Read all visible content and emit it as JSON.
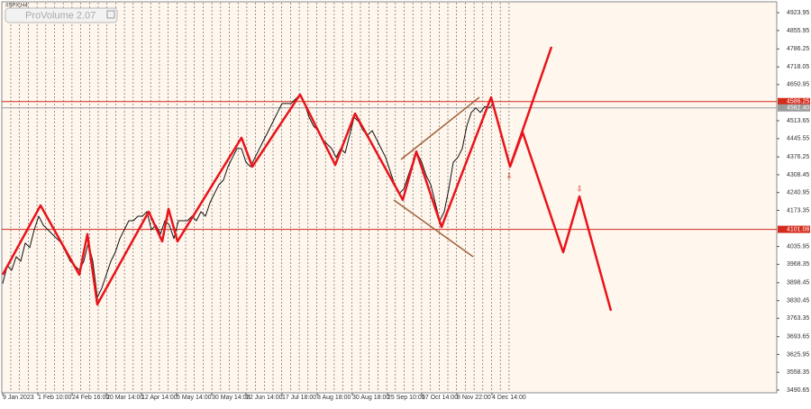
{
  "chart_data": {
    "type": "line",
    "symbol": "#SPX,H4",
    "indicator": "ProVolume 2.07",
    "xlim": [
      0,
      170
    ],
    "ylim": [
      3477,
      4972
    ],
    "xticks": [
      {
        "value": 0,
        "label": "9 Jan 2023"
      },
      {
        "value": 7.8,
        "label": "1 Feb 10:00"
      },
      {
        "value": 15.4,
        "label": "24 Feb 16:00"
      },
      {
        "value": 23,
        "label": "20 Mar 14:00"
      },
      {
        "value": 30.8,
        "label": "12 Apr 14:00"
      },
      {
        "value": 38.6,
        "label": "5 May 14:00"
      },
      {
        "value": 46.4,
        "label": "30 May 14:00"
      },
      {
        "value": 54,
        "label": "22 Jun 14:00"
      },
      {
        "value": 62,
        "label": "17 Jul 18:00"
      },
      {
        "value": 69.8,
        "label": "8 Aug 18:00"
      },
      {
        "value": 77.6,
        "label": "30 Aug 18:00"
      },
      {
        "value": 85.4,
        "label": "25 Sep 10:00"
      },
      {
        "value": 93,
        "label": "17 Oct 14:00"
      },
      {
        "value": 100.8,
        "label": "8 Nov 22:00"
      },
      {
        "value": 108.6,
        "label": "4 Dec 14:00"
      }
    ],
    "yticks": [
      4923.95,
      4855.95,
      4786.25,
      4718.05,
      4650.95,
      4513.65,
      4445.55,
      4376.25,
      4308.45,
      4240.95,
      4173.35,
      4035.95,
      3968.35,
      3898.45,
      3830.45,
      3763.35,
      3693.65,
      3625.95,
      3558.35,
      3490.65
    ],
    "levels": [
      {
        "value": 4586.25,
        "color": "#d42a1a"
      },
      {
        "value": 4562.4,
        "label": "4562.40",
        "color": "#9a9a9a"
      },
      {
        "value": 4101.08,
        "color": "#d42a1a"
      }
    ],
    "series": [
      {
        "color": "#111111",
        "width": 1,
        "x": [
          0,
          1,
          2,
          3,
          4,
          5,
          6,
          7,
          8,
          9,
          10,
          11,
          12,
          13,
          14,
          15,
          16,
          17,
          18,
          19,
          20,
          21,
          22,
          23,
          24,
          25,
          26,
          27,
          28,
          29,
          30,
          31,
          32,
          33,
          34,
          35,
          36,
          37,
          38,
          39,
          40,
          41,
          42,
          43,
          44,
          45,
          46,
          47,
          48,
          49,
          50,
          51,
          52,
          53,
          54,
          55,
          56,
          57,
          58,
          59,
          60,
          61,
          62,
          63,
          64,
          65,
          66,
          67,
          68,
          69,
          70,
          71,
          72,
          73,
          74,
          75,
          76,
          77,
          78,
          79,
          80,
          81,
          82,
          83,
          84,
          85,
          86,
          87,
          88,
          89,
          90,
          91,
          92,
          93,
          94,
          95,
          96,
          97,
          98,
          99,
          100,
          101,
          102,
          103,
          104,
          105,
          106,
          107,
          108,
          109
        ],
        "values": [
          3895,
          3963,
          3946,
          3997,
          3980,
          4049,
          4032,
          4100,
          4151,
          4117,
          4100,
          4083,
          4066,
          4049,
          4014,
          3980,
          3963,
          3946,
          3980,
          4049,
          3980,
          3843,
          3878,
          3929,
          3980,
          4014,
          4066,
          4100,
          4134,
          4134,
          4151,
          4151,
          4168,
          4100,
          4117,
          4083,
          4134,
          4117,
          4066,
          4134,
          4134,
          4134,
          4151,
          4134,
          4168,
          4151,
          4202,
          4237,
          4271,
          4288,
          4339,
          4374,
          4408,
          4408,
          4356,
          4339,
          4374,
          4408,
          4442,
          4476,
          4510,
          4545,
          4579,
          4579,
          4579,
          4596,
          4613,
          4579,
          4527,
          4493,
          4476,
          4442,
          4425,
          4408,
          4374,
          4408,
          4391,
          4459,
          4527,
          4510,
          4476,
          4459,
          4476,
          4442,
          4408,
          4374,
          4322,
          4271,
          4237,
          4254,
          4305,
          4356,
          4391,
          4356,
          4305,
          4271,
          4202,
          4134,
          4168,
          4254,
          4356,
          4374,
          4408,
          4493,
          4545,
          4562,
          4545,
          4568,
          4562,
          4579
        ]
      },
      {
        "color": "#e8141a",
        "width": 2.5,
        "x": [
          0,
          8.4,
          17,
          18.8,
          21,
          32.4,
          35.4,
          36.8,
          38.8,
          53,
          55.4,
          66,
          73.8,
          78.2,
          81.4,
          88.8,
          91.8,
          97.4,
          108.4,
          112.6,
          115.4,
          124.4,
          128,
          135
        ],
        "values": [
          3929,
          4192,
          3929,
          4083,
          3816,
          4168,
          4055,
          4179,
          4055,
          4449,
          4339,
          4613,
          4346,
          4541,
          4442,
          4213,
          4397,
          4110,
          4603,
          4339,
          4469,
          4014,
          4226,
          3792
        ]
      },
      {
        "color": "#e8141a",
        "width": 2.5,
        "x": [
          112.6,
          121.8
        ],
        "values": [
          4339,
          4794
        ]
      }
    ]
  }
}
